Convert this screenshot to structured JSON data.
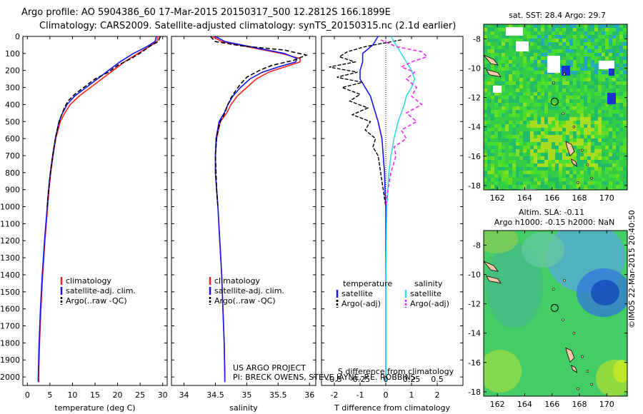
{
  "header": {
    "line1": "Argo profile: AO 5904386_60 17-Mar-2015 20150317_500 12.2812S 166.1899E",
    "line2": "Climatology: CARS2009. Satellite-adjusted climatology: synTS_20150315.nc (2.1d earlier)"
  },
  "footer": {
    "project": "US ARGO PROJECT",
    "pi": "PI: BRECK OWENS, STEVE JAYNE, P.E. ROBBINS",
    "stamp": "©IMOS 22-Mar-2015 20:40:50"
  },
  "colors": {
    "climatology": "#ff2020",
    "satellite": "#1414ff",
    "argo": "#000000",
    "sal_sat": "#33ddee",
    "sal_argo": "#ff22ff"
  },
  "chart_data": [
    {
      "id": "temperature",
      "type": "line",
      "xlabel": "temperature (deg C)",
      "ylabel": "",
      "xlim": [
        -1,
        31
      ],
      "ylim": [
        2050,
        0
      ],
      "xticks": [
        "0",
        "5",
        "10",
        "15",
        "20",
        "25",
        "30"
      ],
      "xtick_values": [
        0,
        5,
        10,
        15,
        20,
        25,
        30
      ],
      "yticks": [
        "0",
        "100",
        "200",
        "300",
        "400",
        "500",
        "600",
        "700",
        "800",
        "900",
        "1000",
        "1100",
        "1200",
        "1300",
        "1400",
        "1500",
        "1600",
        "1700",
        "1800",
        "1900",
        "2000"
      ],
      "ytick_values": [
        0,
        100,
        200,
        300,
        400,
        500,
        600,
        700,
        800,
        900,
        1000,
        1100,
        1200,
        1300,
        1400,
        1500,
        1600,
        1700,
        1800,
        1900,
        2000
      ],
      "legend": [
        "climatology",
        "satellite-adj. clim.",
        "Argo(..raw -QC)"
      ],
      "series": [
        {
          "name": "climatology",
          "depth": [
            0,
            30,
            60,
            100,
            150,
            200,
            250,
            300,
            350,
            400,
            450,
            500,
            600,
            700,
            800,
            900,
            1000,
            1200,
            1400,
            1600,
            1800,
            2000,
            2030
          ],
          "values": [
            29.0,
            28.7,
            27.0,
            24.5,
            21.5,
            19.0,
            16.5,
            14.0,
            11.5,
            9.5,
            8.3,
            7.3,
            6.3,
            5.7,
            5.2,
            4.8,
            4.5,
            3.9,
            3.4,
            3.0,
            2.7,
            2.5,
            2.5
          ]
        },
        {
          "name": "satellite-adj. clim.",
          "depth": [
            0,
            30,
            60,
            100,
            150,
            200,
            250,
            300,
            350,
            400,
            450,
            500,
            600,
            700,
            800,
            900,
            1000,
            1200,
            1400,
            1600,
            1800,
            2000,
            2030
          ],
          "values": [
            28.6,
            28.3,
            26.5,
            23.5,
            20.5,
            18.0,
            15.5,
            13.0,
            10.5,
            8.8,
            7.8,
            7.0,
            6.2,
            5.6,
            5.1,
            4.7,
            4.4,
            3.8,
            3.3,
            2.9,
            2.6,
            2.4,
            2.4
          ]
        },
        {
          "name": "Argo(..raw -QC)",
          "depth": [
            0,
            30,
            60,
            90,
            130,
            170,
            210,
            250,
            300,
            340,
            380,
            420,
            460,
            500,
            550,
            600,
            700,
            800,
            900,
            1000
          ],
          "values": [
            29.5,
            29.0,
            27.0,
            25.5,
            23.0,
            20.0,
            18.0,
            15.0,
            12.5,
            10.5,
            9.0,
            8.2,
            7.6,
            7.1,
            6.6,
            6.2,
            5.6,
            5.1,
            4.7,
            4.4
          ]
        }
      ]
    },
    {
      "id": "salinity",
      "type": "line",
      "xlabel": "salinity",
      "xlim": [
        33.8,
        36.1
      ],
      "ylim": [
        2050,
        0
      ],
      "xticks": [
        "34",
        "34.5",
        "35",
        "35.5",
        "36"
      ],
      "xtick_values": [
        34,
        34.5,
        35,
        35.5,
        36
      ],
      "legend": [
        "climatology",
        "satellite-adj. clim.",
        "Argo(..raw -QC)"
      ],
      "series": [
        {
          "name": "climatology",
          "depth": [
            0,
            30,
            60,
            100,
            130,
            150,
            180,
            210,
            250,
            300,
            350,
            400,
            450,
            500,
            600,
            700,
            800,
            900,
            1000,
            1200,
            1400,
            1600,
            1800,
            2000,
            2030
          ],
          "values": [
            34.45,
            34.6,
            35.0,
            35.55,
            35.85,
            35.85,
            35.6,
            35.35,
            35.15,
            35.0,
            34.85,
            34.75,
            34.68,
            34.58,
            34.52,
            34.5,
            34.5,
            34.52,
            34.54,
            34.57,
            34.6,
            34.62,
            34.64,
            34.65,
            34.65
          ]
        },
        {
          "name": "satellite-adj. clim.",
          "depth": [
            0,
            30,
            60,
            100,
            130,
            150,
            180,
            210,
            250,
            300,
            350,
            400,
            450,
            500,
            600,
            700,
            800,
            900,
            1000,
            1200,
            1400,
            1600,
            1800,
            2000,
            2030
          ],
          "values": [
            34.5,
            34.65,
            35.05,
            35.6,
            35.8,
            35.78,
            35.5,
            35.25,
            35.05,
            34.9,
            34.78,
            34.7,
            34.64,
            34.56,
            34.51,
            34.5,
            34.5,
            34.52,
            34.54,
            34.57,
            34.6,
            34.62,
            34.64,
            34.65,
            34.65
          ]
        },
        {
          "name": "Argo(..raw -QC)",
          "depth": [
            0,
            30,
            55,
            80,
            110,
            140,
            170,
            200,
            240,
            280,
            320,
            360,
            400,
            450,
            500,
            550,
            600,
            700,
            800,
            900,
            1000
          ],
          "values": [
            34.42,
            34.5,
            34.9,
            35.6,
            35.95,
            35.75,
            35.4,
            35.2,
            35.0,
            34.9,
            34.82,
            34.75,
            34.7,
            34.65,
            34.58,
            34.54,
            34.52,
            34.5,
            34.51,
            34.52,
            34.54
          ]
        }
      ]
    },
    {
      "id": "difference",
      "type": "line",
      "xlabel": "T difference from climatology",
      "xlabel2": "S difference from climatology",
      "xlim": [
        -2.5,
        3.0
      ],
      "ylim": [
        2050,
        0
      ],
      "xticks": [
        "-2",
        "-1",
        "0",
        "1",
        "2"
      ],
      "xtick_values": [
        -2,
        -1,
        0,
        1,
        2
      ],
      "sticks": [
        "-0.5",
        "-0.25",
        "0",
        "0.25",
        "0.5"
      ],
      "stick_values": [
        -0.5,
        -0.25,
        0,
        0.25,
        0.5
      ],
      "legend_t_head": "temperature",
      "legend_s_head": "salinity",
      "legend": [
        "satellite",
        "Argo(-adj)",
        "satellite",
        "Argo(-adj)"
      ],
      "series": [
        {
          "name": "T satellite",
          "depth": [
            0,
            50,
            100,
            150,
            200,
            250,
            300,
            350,
            400,
            500,
            600,
            700,
            800,
            900,
            1000,
            1500,
            2030
          ],
          "values": [
            -0.3,
            -0.5,
            -0.9,
            -0.9,
            -1.0,
            -1.0,
            -0.8,
            -0.6,
            -0.5,
            -0.3,
            -0.15,
            -0.1,
            -0.05,
            -0.03,
            0,
            0,
            0
          ]
        },
        {
          "name": "T Argo(-adj)",
          "depth": [
            20,
            60,
            90,
            120,
            150,
            180,
            210,
            240,
            270,
            300,
            340,
            380,
            420,
            460,
            500,
            550,
            600,
            650,
            700,
            800,
            900,
            1000
          ],
          "values": [
            0.6,
            -0.8,
            -1.5,
            -1.8,
            -1.2,
            -2.2,
            -1.1,
            -1.9,
            -0.9,
            -1.7,
            -1.0,
            -1.4,
            -0.7,
            -1.3,
            -0.6,
            -0.8,
            -0.4,
            -0.5,
            -0.3,
            -0.2,
            -0.1,
            0
          ]
        },
        {
          "name": "S satellite",
          "depth": [
            0,
            50,
            100,
            150,
            200,
            250,
            300,
            350,
            400,
            500,
            600,
            700,
            800,
            900,
            1000,
            1500,
            2030
          ],
          "values": [
            0.05,
            0.1,
            0.15,
            0.2,
            0.25,
            0.28,
            0.25,
            0.2,
            0.18,
            0.12,
            0.08,
            0.05,
            0.03,
            0.02,
            0.01,
            0,
            0
          ]
        },
        {
          "name": "S Argo(-adj)",
          "depth": [
            20,
            60,
            90,
            120,
            150,
            180,
            210,
            250,
            300,
            350,
            400,
            450,
            500,
            550,
            600,
            650,
            700,
            800,
            900,
            1000
          ],
          "values": [
            -0.05,
            0.1,
            0.35,
            0.4,
            0.25,
            0.15,
            0.28,
            0.2,
            0.3,
            0.25,
            0.35,
            0.2,
            0.3,
            0.15,
            0.2,
            0.08,
            0.1,
            0.05,
            0.02,
            0
          ]
        }
      ]
    }
  ],
  "maps": {
    "sst": {
      "title": "sat. SST: 28.4 Argo: 29.7",
      "yticks": [
        "-8",
        "-10",
        "-12",
        "-14",
        "-16",
        "-18"
      ],
      "ytick_values": [
        -8,
        -10,
        -12,
        -14,
        -16,
        -18
      ],
      "xticks": [
        "162",
        "164",
        "166",
        "168",
        "170"
      ],
      "xtick_values": [
        162,
        164,
        166,
        168,
        170
      ],
      "lon_range": [
        161,
        171.5
      ],
      "lat_range": [
        -18.3,
        -7
      ]
    },
    "sla": {
      "title1": "Altim. SLA: -0.11",
      "title2": "Argo h1000: -0.15 h2000: NaN",
      "yticks": [
        "-8",
        "-10",
        "-12",
        "-14",
        "-16",
        "-18"
      ],
      "ytick_values": [
        -8,
        -10,
        -12,
        -14,
        -16,
        -18
      ],
      "xticks": [
        "162",
        "164",
        "166",
        "168",
        "170"
      ],
      "xtick_values": [
        162,
        164,
        166,
        168,
        170
      ],
      "lon_range": [
        161,
        171.5
      ],
      "lat_range": [
        -18.3,
        -7
      ]
    },
    "float_position": {
      "lon": 166.19,
      "lat": -12.28
    }
  }
}
